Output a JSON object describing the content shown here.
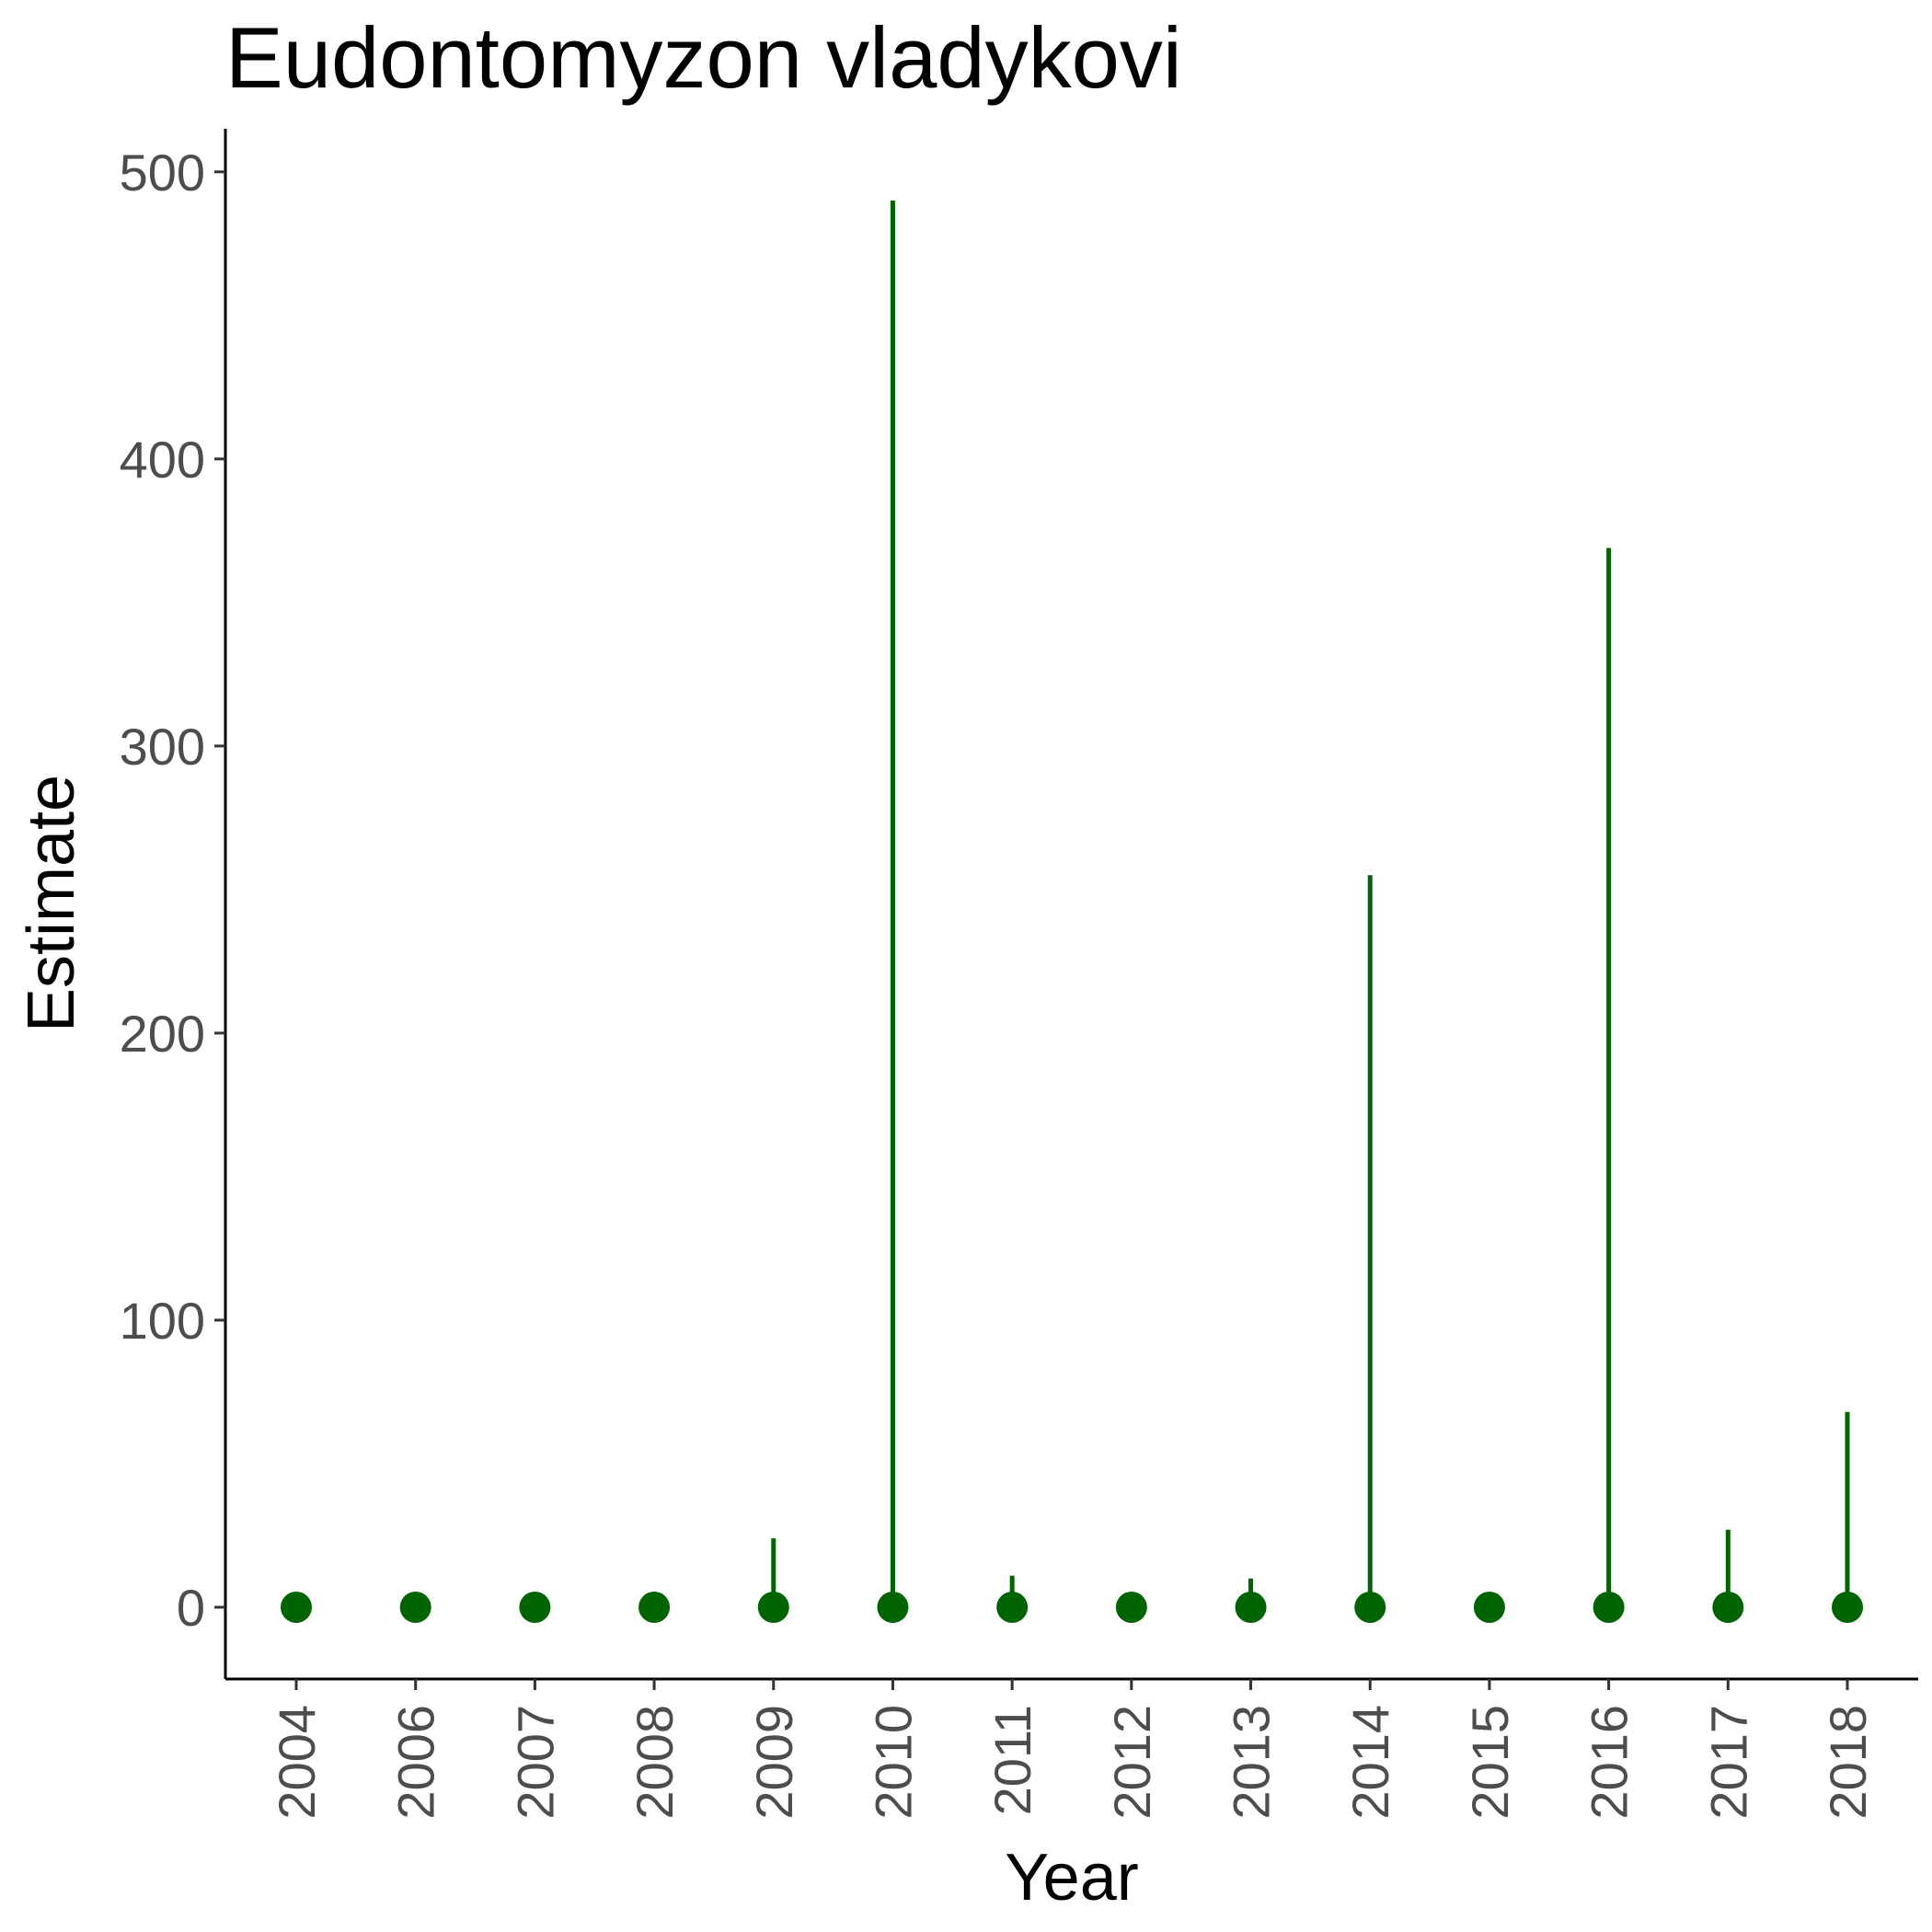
{
  "chart_data": {
    "type": "scatter",
    "title": "Eudontomyzon vladykovi",
    "xlabel": "Year",
    "ylabel": "Estimate",
    "categories": [
      "2004",
      "2006",
      "2007",
      "2008",
      "2009",
      "2010",
      "2011",
      "2012",
      "2013",
      "2014",
      "2015",
      "2016",
      "2017",
      "2018"
    ],
    "values": [
      0,
      0,
      0,
      0,
      0,
      0,
      0,
      0,
      0,
      0,
      0,
      0,
      0,
      0
    ],
    "upper": [
      0,
      0,
      0,
      0,
      24,
      490,
      11,
      0,
      10,
      255,
      0,
      369,
      27,
      68
    ],
    "lower": [
      0,
      0,
      0,
      0,
      0,
      0,
      0,
      0,
      0,
      0,
      0,
      0,
      0,
      0
    ],
    "yticks": [
      0,
      100,
      200,
      300,
      400,
      500
    ],
    "ylim": [
      -25,
      515
    ],
    "grid": false,
    "color": "#006400"
  }
}
